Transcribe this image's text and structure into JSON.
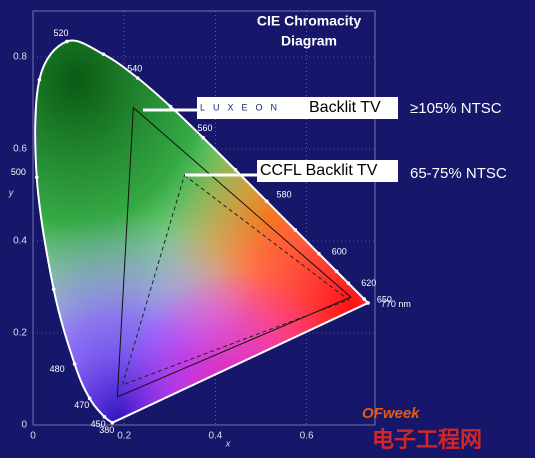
{
  "chart_data": {
    "type": "cie",
    "title": [
      "CIE Chromacity",
      "Diagram"
    ],
    "x_label": "x",
    "y_label": "y",
    "xlim": [
      0,
      0.75
    ],
    "ylim": [
      0,
      0.9
    ],
    "xticks": [
      0,
      0.2,
      0.4,
      0.6
    ],
    "yticks": [
      0,
      0.2,
      0.4,
      0.6,
      0.8
    ],
    "grid": true,
    "locus": {
      "labels": [
        "380",
        "450",
        "470",
        "480",
        null,
        "500",
        null,
        "520",
        null,
        "540",
        null,
        "560",
        null,
        "580",
        null,
        "600",
        null,
        "620",
        "650",
        "770 nm"
      ],
      "x": [
        0.1741,
        0.1566,
        0.1241,
        0.0913,
        0.0454,
        0.0082,
        0.0139,
        0.0743,
        0.1547,
        0.2296,
        0.3016,
        0.3731,
        0.4441,
        0.5125,
        0.5752,
        0.627,
        0.6658,
        0.6915,
        0.726,
        0.7347
      ],
      "y": [
        0.005,
        0.0177,
        0.0578,
        0.1327,
        0.295,
        0.5384,
        0.7502,
        0.8338,
        0.8059,
        0.7543,
        0.6923,
        0.6245,
        0.5547,
        0.4866,
        0.4242,
        0.3725,
        0.334,
        0.3083,
        0.274,
        0.2653
      ],
      "color": "#ffffff"
    },
    "gamuts": [
      {
        "brand": "LUXEON",
        "name": "Backlit TV",
        "coverage": "≥105% NTSC",
        "x": [
          0.22,
          0.697,
          0.185
        ],
        "y": [
          0.69,
          0.278,
          0.061
        ],
        "dashed": false,
        "color": "#111111"
      },
      {
        "name": "CCFL Backlit TV",
        "coverage": "65-75% NTSC",
        "x": [
          0.332,
          0.692,
          0.196
        ],
        "y": [
          0.543,
          0.272,
          0.087
        ],
        "dashed": true,
        "color": "#222222"
      }
    ],
    "watermark": [
      "OFweek",
      "电子工程网"
    ]
  }
}
